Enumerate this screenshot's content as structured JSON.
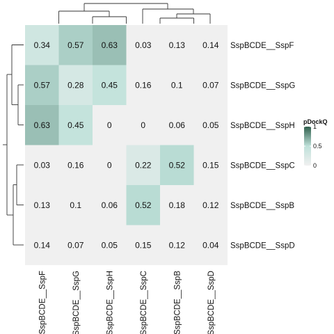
{
  "chart_data": {
    "type": "heatmap",
    "rows": [
      "SspBCDE__SspF",
      "SspBCDE__SspG",
      "SspBCDE__SspH",
      "SspBCDE__SspC",
      "SspBCDE__SspB",
      "SspBCDE__SspD"
    ],
    "columns": [
      "SspBCDE__SspF",
      "SspBCDE__SspG",
      "SspBCDE__SspH",
      "SspBCDE__SspC",
      "SspBCDE__SspB",
      "SspBCDE__SspD"
    ],
    "values": [
      [
        0.34,
        0.57,
        0.63,
        0.03,
        0.13,
        0.14
      ],
      [
        0.57,
        0.28,
        0.45,
        0.16,
        0.1,
        0.07
      ],
      [
        0.63,
        0.45,
        0,
        0,
        0.06,
        0.05
      ],
      [
        0.03,
        0.16,
        0,
        0.22,
        0.52,
        0.15
      ],
      [
        0.13,
        0.1,
        0.06,
        0.52,
        0.18,
        0.12
      ],
      [
        0.14,
        0.07,
        0.05,
        0.15,
        0.12,
        0.04
      ]
    ],
    "value_labels": [
      [
        "0.34",
        "0.57",
        "0.63",
        "0.03",
        "0.13",
        "0.14"
      ],
      [
        "0.57",
        "0.28",
        "0.45",
        "0.16",
        "0.1",
        "0.07"
      ],
      [
        "0.63",
        "0.45",
        "0",
        "0",
        "0.06",
        "0.05"
      ],
      [
        "0.03",
        "0.16",
        "0",
        "0.22",
        "0.52",
        "0.15"
      ],
      [
        "0.13",
        "0.1",
        "0.06",
        "0.52",
        "0.18",
        "0.12"
      ],
      [
        "0.14",
        "0.07",
        "0.05",
        "0.15",
        "0.12",
        "0.04"
      ]
    ],
    "color_scale": {
      "min": 0,
      "max": 1,
      "low": "#f0f0f0",
      "mid": "#bfe1da",
      "high": "#2f5f4c"
    },
    "cell_threshold": 0.2,
    "legend": {
      "title": "pDockQ",
      "ticks": [
        "0",
        "0.5",
        "1"
      ],
      "tick_values": [
        0,
        0.5,
        1
      ],
      "placement": "right"
    },
    "row_dendrogram": true,
    "column_dendrogram": true
  }
}
